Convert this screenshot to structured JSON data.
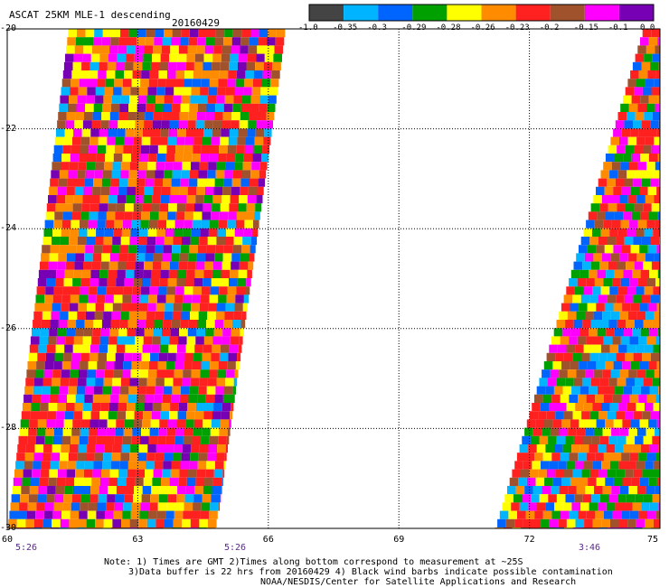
{
  "header": {
    "title": "ASCAT 25KM MLE-1 descending",
    "date": "20160429"
  },
  "colorbar": {
    "colors": [
      "#444444",
      "#00b4ff",
      "#0064ff",
      "#00a000",
      "#ffff00",
      "#ff8c00",
      "#ff2020",
      "#a0522d",
      "#ff00ff",
      "#7800b4"
    ],
    "labels": [
      "-1.0",
      "-0.35",
      "-0.3",
      "-0.29",
      "-0.28",
      "-0.26",
      "-0.23",
      "-0.2",
      "-0.15",
      "-0.1",
      "0.0"
    ]
  },
  "chart_data": {
    "type": "heatmap",
    "title": "ASCAT 25KM MLE-1 descending",
    "subtitle": "20160429",
    "xlim": [
      60,
      75
    ],
    "ylim": [
      -30,
      -20
    ],
    "x_ticks": [
      "60",
      "63",
      "66",
      "69",
      "72",
      "75"
    ],
    "y_ticks": [
      "-20",
      "-22",
      "-24",
      "-26",
      "-28",
      "-30"
    ],
    "grid": true,
    "swaths": [
      {
        "name": "",
        "time": "5:26",
        "lat_top": -20,
        "lat_bottom": -30,
        "lon_left_top": 61.4,
        "lon_right_top": 66.4,
        "lon_left_bottom": 60.0,
        "lon_right_bottom": 64.8
      },
      {
        "name": "",
        "time": "3:46",
        "lat_top": -20,
        "lat_bottom": -30,
        "lon_left_top": 74.6,
        "lon_right_top": 75.0,
        "lon_left_bottom": 71.2,
        "lon_right_bottom": 75.0
      }
    ]
  },
  "time_labels": [
    "5:26",
    "5:26",
    "3:46"
  ],
  "footer": {
    "line1": "Note: 1) Times are GMT 2)Times along bottom correspond to measurement at ~25S",
    "line2": "3)Data buffer is 22 hrs from 20160429 4) Black wind barbs indicate possible contamination",
    "line3": "NOAA/NESDIS/Center for Satellite Applications and Research"
  }
}
